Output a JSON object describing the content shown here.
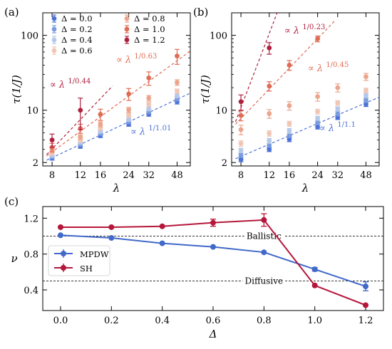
{
  "chart_data": [
    {
      "panel": "(a)",
      "type": "scatter",
      "xscale": "log",
      "yscale": "log",
      "xlabel": "λ",
      "ylabel": "τ(1/J)",
      "xticks": [
        8,
        12,
        16,
        24,
        32,
        48
      ],
      "yticks": [
        2,
        10,
        100
      ],
      "xlim": [
        7,
        58
      ],
      "ylim": [
        1.8,
        200
      ],
      "legend": {
        "placement": "top",
        "columns": 2
      },
      "series": [
        {
          "name": "Δ = 0.0",
          "color": "#4c72d8",
          "x": [
            8,
            12,
            16,
            24,
            32,
            48
          ],
          "y": [
            2.3,
            3.3,
            4.6,
            6.5,
            8.9,
            13.0
          ],
          "err": [
            0.15,
            0.2,
            0.3,
            0.4,
            0.6,
            0.9
          ]
        },
        {
          "name": "Δ = 0.2",
          "color": "#7a9cdf",
          "x": [
            8,
            12,
            16,
            24,
            32,
            48
          ],
          "y": [
            2.4,
            3.5,
            4.9,
            7.0,
            9.6,
            14.2
          ],
          "err": [
            0.15,
            0.2,
            0.3,
            0.4,
            0.6,
            0.9
          ]
        },
        {
          "name": "Δ = 0.4",
          "color": "#b4c8ea",
          "x": [
            8,
            12,
            16,
            24,
            32,
            48
          ],
          "y": [
            2.5,
            3.7,
            5.2,
            7.6,
            10.5,
            15.6
          ],
          "err": [
            0.15,
            0.2,
            0.3,
            0.5,
            0.7,
            1.0
          ]
        },
        {
          "name": "Δ = 0.6",
          "color": "#f0c6b4",
          "x": [
            8,
            12,
            16,
            24,
            32,
            48
          ],
          "y": [
            2.7,
            4.0,
            5.8,
            8.6,
            12.0,
            18.0
          ],
          "err": [
            0.2,
            0.3,
            0.4,
            0.6,
            0.8,
            1.2
          ]
        },
        {
          "name": "Δ = 0.8",
          "color": "#eba58c",
          "x": [
            8,
            12,
            16,
            24,
            32,
            48
          ],
          "y": [
            2.9,
            4.4,
            6.5,
            10.1,
            14.5,
            23.5
          ],
          "err": [
            0.2,
            0.3,
            0.5,
            0.8,
            1.2,
            2.0
          ]
        },
        {
          "name": "Δ = 1.0",
          "color": "#df6c55",
          "x": [
            8,
            12,
            16,
            24,
            32,
            48
          ],
          "y": [
            3.2,
            5.7,
            8.8,
            16.5,
            27.0,
            53.0
          ],
          "err": [
            0.4,
            0.8,
            1.5,
            3.0,
            5.5,
            12.0
          ]
        },
        {
          "name": "Δ = 1.2",
          "color": "#b0203e",
          "x": [
            8,
            12
          ],
          "y": [
            4.0,
            10.0
          ],
          "err": [
            0.8,
            4.5
          ]
        }
      ],
      "fits": [
        {
          "label": "∝ λ",
          "exp": "1/1.01",
          "color": "#4c72d8"
        },
        {
          "label": "∝ λ",
          "exp": "1/0.63",
          "color": "#df6c55"
        },
        {
          "label": "∝ λ",
          "exp": "1/0.44",
          "color": "#b0203e"
        }
      ]
    },
    {
      "panel": "(b)",
      "type": "scatter",
      "xscale": "log",
      "yscale": "log",
      "xlabel": "λ",
      "ylabel": "τ(1/J)",
      "xticks": [
        8,
        12,
        16,
        24,
        32,
        48
      ],
      "yticks": [
        2,
        10,
        100
      ],
      "xlim": [
        7,
        58
      ],
      "ylim": [
        1.8,
        200
      ],
      "series": [
        {
          "name": "Δ = 0.0",
          "color": "#4c72d8",
          "x": [
            8,
            12,
            16,
            24,
            32,
            48
          ],
          "y": [
            2.2,
            3.0,
            4.1,
            6.0,
            8.0,
            12.0
          ],
          "err": [
            0.15,
            0.2,
            0.3,
            0.4,
            0.5,
            0.8
          ]
        },
        {
          "name": "Δ = 0.2",
          "color": "#7a9cdf",
          "x": [
            8,
            12,
            16,
            24,
            32,
            48
          ],
          "y": [
            2.5,
            3.4,
            4.6,
            6.8,
            9.0,
            13.6
          ],
          "err": [
            0.15,
            0.2,
            0.3,
            0.4,
            0.6,
            0.9
          ]
        },
        {
          "name": "Δ = 0.4",
          "color": "#b4c8ea",
          "x": [
            8,
            12,
            16,
            24,
            32,
            48
          ],
          "y": [
            2.9,
            3.9,
            5.3,
            7.8,
            10.4,
            15.7
          ],
          "err": [
            0.2,
            0.3,
            0.4,
            0.5,
            0.7,
            1.0
          ]
        },
        {
          "name": "Δ = 0.6",
          "color": "#f0c6b4",
          "x": [
            8,
            12,
            16,
            24,
            32,
            48
          ],
          "y": [
            3.6,
            4.9,
            6.6,
            9.6,
            12.5,
            18.4
          ],
          "err": [
            0.3,
            0.4,
            0.5,
            0.7,
            0.9,
            1.3
          ]
        },
        {
          "name": "Δ = 0.8",
          "color": "#eba58c",
          "x": [
            8,
            12,
            16,
            24,
            32,
            48
          ],
          "y": [
            5.5,
            9.0,
            11.5,
            15.2,
            20.0,
            28.0
          ],
          "err": [
            0.8,
            1.2,
            1.5,
            2.0,
            2.5,
            3.0
          ]
        },
        {
          "name": "Δ = 1.0",
          "color": "#df6c55",
          "x": [
            8,
            12,
            16,
            24
          ],
          "y": [
            8.5,
            21.0,
            40.0,
            90.0
          ],
          "err": [
            1.3,
            3.0,
            6.0,
            8.0
          ]
        },
        {
          "name": "Δ = 1.2",
          "color": "#b0203e",
          "x": [
            8,
            12
          ],
          "y": [
            13.0,
            68.0
          ],
          "err": [
            3.0,
            12.0
          ]
        }
      ],
      "fits": [
        {
          "label": "∝ λ",
          "exp": "1/1.1",
          "color": "#4c72d8"
        },
        {
          "label": "∝ λ",
          "exp": "1/0.45",
          "color": "#df6c55"
        },
        {
          "label": "∝ λ",
          "exp": "1/0.23",
          "color": "#b0203e"
        }
      ]
    },
    {
      "panel": "(c)",
      "type": "line",
      "xlabel": "Δ",
      "ylabel": "ν",
      "x": [
        0.0,
        0.2,
        0.4,
        0.6,
        0.8,
        1.0,
        1.2
      ],
      "xticks": [
        "0.0",
        "0.2",
        "0.4",
        "0.6",
        "0.8",
        "1.0",
        "1.2"
      ],
      "yticks": [
        "0.4",
        "0.8",
        "1.2"
      ],
      "xlim": [
        -0.07,
        1.27
      ],
      "ylim": [
        0.17,
        1.33
      ],
      "legend": {
        "placement": "center-left"
      },
      "series": [
        {
          "name": "MPDW",
          "color": "#4169c9",
          "values": [
            1.01,
            0.98,
            0.92,
            0.88,
            0.82,
            0.63,
            0.44
          ],
          "err": [
            0.01,
            0.01,
            0.01,
            0.01,
            0.01,
            0.02,
            0.05
          ]
        },
        {
          "name": "SH",
          "color": "#b5173a",
          "values": [
            1.1,
            1.1,
            1.11,
            1.15,
            1.18,
            0.45,
            0.23
          ],
          "err": [
            0.01,
            0.01,
            0.01,
            0.04,
            0.07,
            0.01,
            0.01
          ]
        }
      ],
      "reference_lines": [
        {
          "label": "Ballistic",
          "y": 1.0
        },
        {
          "label": "Diffusive",
          "y": 0.5
        }
      ]
    }
  ]
}
